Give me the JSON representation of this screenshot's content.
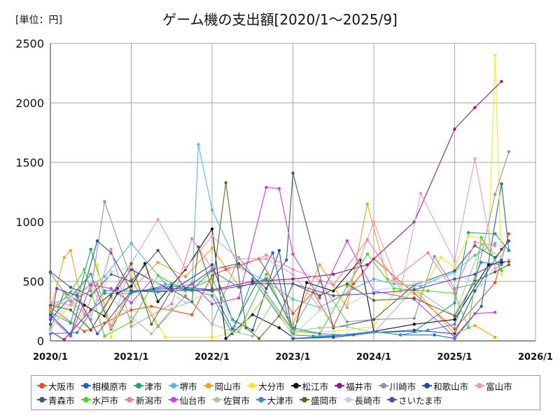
{
  "unit_label": "[単位：円]",
  "chart_data": {
    "type": "line",
    "title": "ゲーム機の支出額[2020/1～2025/9]",
    "ylabel": "円",
    "xlabel": "",
    "ylim": [
      0,
      2500
    ],
    "yticks": [
      0,
      500,
      1000,
      1500,
      2000,
      2500
    ],
    "xlim": [
      2020.0,
      2026.0
    ],
    "xtick_values": [
      2020,
      2021,
      2022,
      2023,
      2024,
      2025,
      2026
    ],
    "xtick_labels": [
      "2020/1",
      "2021/1",
      "2022/1",
      "2023/1",
      "2024/1",
      "2025/1",
      "2026/1"
    ],
    "grid": true,
    "legend_position": "bottom",
    "series": [
      {
        "name": "大阪市",
        "color": "#e8501c",
        "x": [
          2020.0,
          2020.42,
          2020.67,
          2021.0,
          2021.25,
          2021.75,
          2022.0,
          2022.17,
          2022.58,
          2023.0,
          2023.25,
          2023.5,
          2023.75,
          2024.0,
          2024.5,
          2025.0,
          2025.5,
          2025.67
        ],
        "y": [
          280,
          80,
          150,
          260,
          290,
          220,
          550,
          600,
          690,
          230,
          410,
          120,
          480,
          690,
          400,
          100,
          490,
          900
        ]
      },
      {
        "name": "相模原市",
        "color": "#1f5fd6",
        "x": [
          2020.0,
          2020.5,
          2020.75,
          2021.0,
          2021.5,
          2022.0,
          2022.25,
          2022.75,
          2023.0,
          2023.5,
          2024.0,
          2024.33,
          2024.75,
          2025.0,
          2025.33,
          2025.58,
          2025.67
        ],
        "y": [
          180,
          560,
          100,
          410,
          460,
          430,
          100,
          740,
          20,
          40,
          80,
          50,
          50,
          20,
          290,
          1320,
          760
        ]
      },
      {
        "name": "津市",
        "color": "#17a57a",
        "x": [
          2020.0,
          2020.25,
          2020.5,
          2020.67,
          2021.0,
          2021.5,
          2022.0,
          2022.25,
          2022.5,
          2023.0,
          2023.25,
          2023.75,
          2024.0,
          2024.5,
          2025.0,
          2025.17,
          2025.5,
          2025.67
        ],
        "y": [
          240,
          150,
          770,
          400,
          400,
          480,
          380,
          60,
          520,
          50,
          40,
          50,
          70,
          80,
          320,
          910,
          900,
          760
        ]
      },
      {
        "name": "堺市",
        "color": "#52b8e8",
        "x": [
          2020.0,
          2020.33,
          2020.67,
          2021.0,
          2021.42,
          2021.75,
          2021.83,
          2022.0,
          2022.33,
          2022.67,
          2023.0,
          2023.33,
          2023.75,
          2024.0,
          2024.25,
          2024.58,
          2025.0,
          2025.25,
          2025.5
        ],
        "y": [
          300,
          400,
          540,
          820,
          480,
          420,
          1650,
          1100,
          620,
          500,
          350,
          280,
          440,
          520,
          480,
          460,
          580,
          720,
          820
        ]
      },
      {
        "name": "岡山市",
        "color": "#f0a020",
        "x": [
          2020.0,
          2020.17,
          2020.25,
          2020.42,
          2020.58,
          2020.75,
          2021.0,
          2021.33,
          2021.67,
          2022.0,
          2022.33,
          2022.67,
          2023.0,
          2023.33,
          2023.67,
          2023.92,
          2024.17,
          2024.5,
          2025.0,
          2025.25,
          2025.5
        ],
        "y": [
          260,
          700,
          760,
          220,
          480,
          130,
          430,
          660,
          540,
          780,
          460,
          500,
          140,
          640,
          280,
          1150,
          520,
          440,
          60,
          130,
          30
        ]
      },
      {
        "name": "大分市",
        "color": "#f5e81b",
        "x": [
          2020.0,
          2020.33,
          2020.58,
          2020.75,
          2021.0,
          2021.42,
          2022.0,
          2022.33,
          2022.67,
          2023.0,
          2023.5,
          2024.0,
          2024.25,
          2024.58,
          2024.83,
          2025.0,
          2025.17,
          2025.33,
          2025.42,
          2025.5,
          2025.58
        ],
        "y": [
          100,
          380,
          640,
          30,
          550,
          30,
          30,
          80,
          380,
          70,
          80,
          120,
          410,
          400,
          700,
          620,
          880,
          860,
          760,
          2400,
          560
        ]
      },
      {
        "name": "松江市",
        "color": "#111111",
        "x": [
          2020.0,
          2020.17,
          2020.42,
          2020.67,
          2020.83,
          2021.0,
          2021.17,
          2021.33,
          2021.67,
          2022.0,
          2022.17,
          2022.5,
          2022.83,
          2023.0,
          2023.17,
          2023.5,
          2023.83,
          2024.0,
          2024.5,
          2025.0,
          2025.42,
          2025.58,
          2025.67
        ],
        "y": [
          100,
          410,
          300,
          210,
          400,
          460,
          650,
          330,
          600,
          940,
          20,
          220,
          110,
          30,
          490,
          420,
          680,
          80,
          140,
          180,
          640,
          660,
          670
        ]
      },
      {
        "name": "福井市",
        "color": "#8a1c8a",
        "x": [
          2020.0,
          2020.17,
          2020.5,
          2020.83,
          2021.0,
          2021.5,
          2022.0,
          2022.5,
          2023.0,
          2023.5,
          2023.92,
          2024.5,
          2025.0,
          2025.25,
          2025.58
        ],
        "y": [
          80,
          10,
          260,
          440,
          600,
          420,
          430,
          500,
          520,
          560,
          640,
          1000,
          1780,
          1960,
          2180
        ]
      },
      {
        "name": "川崎市",
        "color": "#8a97a6",
        "x": [
          2020.0,
          2020.25,
          2020.5,
          2020.67,
          2021.0,
          2021.33,
          2021.67,
          2022.0,
          2022.33,
          2022.67,
          2023.0,
          2023.33,
          2023.67,
          2024.0,
          2024.5,
          2024.75,
          2025.0,
          2025.25,
          2025.5,
          2025.67
        ],
        "y": [
          570,
          330,
          420,
          1170,
          520,
          120,
          380,
          140,
          700,
          400,
          90,
          500,
          160,
          180,
          190,
          710,
          440,
          480,
          1230,
          1590
        ]
      },
      {
        "name": "和歌山市",
        "color": "#1c4fa5",
        "x": [
          2020.0,
          2020.25,
          2020.58,
          2020.75,
          2021.0,
          2021.5,
          2022.0,
          2022.25,
          2022.5,
          2022.83,
          2023.0,
          2023.5,
          2024.0,
          2024.5,
          2025.0,
          2025.25,
          2025.58,
          2025.67
        ],
        "y": [
          220,
          50,
          840,
          740,
          420,
          420,
          640,
          180,
          90,
          760,
          20,
          30,
          70,
          90,
          60,
          420,
          770,
          840
        ]
      },
      {
        "name": "富山市",
        "color": "#e99cc0",
        "x": [
          2020.0,
          2020.25,
          2020.5,
          2020.75,
          2021.0,
          2021.33,
          2021.67,
          2022.0,
          2022.33,
          2022.67,
          2023.0,
          2023.33,
          2023.67,
          2024.0,
          2024.33,
          2024.58,
          2025.0,
          2025.25,
          2025.5,
          2025.67
        ],
        "y": [
          330,
          300,
          480,
          110,
          650,
          1020,
          610,
          880,
          690,
          690,
          560,
          280,
          400,
          1000,
          420,
          1240,
          670,
          1530,
          610,
          680
        ]
      },
      {
        "name": "青森市",
        "color": "#3c5a7a",
        "x": [
          2020.0,
          2020.25,
          2020.5,
          2020.75,
          2021.0,
          2021.33,
          2021.67,
          2022.0,
          2022.33,
          2022.67,
          2022.92,
          2023.0,
          2023.5,
          2024.0,
          2024.5,
          2025.0,
          2025.25,
          2025.5,
          2025.67
        ],
        "y": [
          580,
          450,
          380,
          560,
          500,
          760,
          440,
          600,
          650,
          440,
          680,
          1410,
          110,
          180,
          470,
          590,
          800,
          700,
          840
        ]
      },
      {
        "name": "水戸市",
        "color": "#4cd42e",
        "x": [
          2020.0,
          2020.25,
          2020.42,
          2020.67,
          2021.0,
          2021.33,
          2021.67,
          2022.0,
          2022.33,
          2022.67,
          2023.0,
          2023.33,
          2023.67,
          2023.92,
          2024.25,
          2024.67,
          2025.0,
          2025.17,
          2025.33,
          2025.58
        ],
        "y": [
          240,
          410,
          600,
          40,
          160,
          550,
          420,
          520,
          80,
          560,
          90,
          60,
          460,
          730,
          440,
          420,
          400,
          110,
          870,
          590
        ]
      },
      {
        "name": "新潟市",
        "color": "#f07fa8",
        "x": [
          2020.0,
          2020.25,
          2020.5,
          2020.75,
          2021.0,
          2021.5,
          2021.75,
          2022.0,
          2022.33,
          2022.67,
          2023.0,
          2023.5,
          2023.92,
          2024.25,
          2024.67,
          2025.0,
          2025.25,
          2025.5
        ],
        "y": [
          290,
          340,
          180,
          770,
          120,
          310,
          860,
          610,
          620,
          720,
          600,
          470,
          850,
          520,
          740,
          410,
          830,
          800
        ]
      },
      {
        "name": "仙台市",
        "color": "#c93fe0",
        "x": [
          2020.0,
          2020.25,
          2020.5,
          2020.75,
          2021.0,
          2021.25,
          2021.5,
          2021.75,
          2022.0,
          2022.33,
          2022.67,
          2022.83,
          2023.0,
          2023.33,
          2023.67,
          2024.0,
          2024.5,
          2025.0,
          2025.25,
          2025.5
        ],
        "y": [
          200,
          40,
          470,
          440,
          320,
          510,
          430,
          480,
          310,
          360,
          1290,
          1280,
          730,
          360,
          840,
          420,
          350,
          30,
          230,
          240
        ]
      },
      {
        "name": "佐賀市",
        "color": "#a8c49a",
        "x": [
          2020.0,
          2020.17,
          2020.5,
          2020.75,
          2021.0,
          2021.25,
          2021.5,
          2021.75,
          2022.0,
          2022.25,
          2022.5,
          2022.75,
          2023.0,
          2023.33,
          2023.67,
          2024.0,
          2024.5,
          2025.0,
          2025.33,
          2025.58
        ],
        "y": [
          100,
          400,
          90,
          360,
          200,
          60,
          270,
          330,
          140,
          80,
          40,
          320,
          80,
          110,
          120,
          70,
          440,
          210,
          810,
          700
        ]
      },
      {
        "name": "大津市",
        "color": "#3a86c8",
        "x": [
          2020.0,
          2020.33,
          2020.67,
          2021.0,
          2021.33,
          2021.75,
          2022.0,
          2022.33,
          2022.67,
          2023.0,
          2023.33,
          2023.67,
          2024.0,
          2024.33,
          2024.67,
          2025.0,
          2025.33,
          2025.58
        ],
        "y": [
          60,
          70,
          420,
          420,
          410,
          430,
          590,
          450,
          520,
          110,
          60,
          50,
          80,
          50,
          90,
          140,
          660,
          640
        ]
      },
      {
        "name": "盛岡市",
        "color": "#5a6a2a",
        "x": [
          2020.0,
          2020.25,
          2020.5,
          2020.75,
          2021.0,
          2021.25,
          2021.5,
          2021.75,
          2021.83,
          2022.0,
          2022.17,
          2022.42,
          2022.58,
          2022.83,
          2023.0,
          2023.33,
          2023.67,
          2024.0,
          2024.5,
          2025.0,
          2025.25,
          2025.5,
          2025.67
        ],
        "y": [
          300,
          260,
          90,
          380,
          650,
          140,
          430,
          330,
          790,
          440,
          1330,
          110,
          20,
          210,
          480,
          380,
          480,
          340,
          360,
          210,
          500,
          580,
          640
        ]
      },
      {
        "name": "長崎市",
        "color": "#b8d4ea",
        "x": [
          2020.0,
          2020.25,
          2020.5,
          2020.75,
          2021.0,
          2021.33,
          2021.67,
          2022.0,
          2022.33,
          2022.67,
          2023.0,
          2023.33,
          2023.67,
          2024.0,
          2024.5,
          2025.0,
          2025.33,
          2025.58
        ],
        "y": [
          80,
          380,
          210,
          580,
          620,
          480,
          320,
          420,
          90,
          390,
          40,
          260,
          300,
          420,
          480,
          560,
          470,
          700
        ]
      },
      {
        "name": "さいたま市",
        "color": "#5a4aa8",
        "x": [
          2020.0,
          2020.08,
          2020.33,
          2020.58,
          2021.0,
          2021.5,
          2022.0,
          2022.5,
          2023.0,
          2023.5,
          2024.0,
          2024.5,
          2025.0,
          2025.25,
          2025.58
        ],
        "y": [
          140,
          440,
          380,
          60,
          420,
          440,
          420,
          480,
          480,
          380,
          400,
          430,
          520,
          560,
          680
        ]
      }
    ]
  }
}
